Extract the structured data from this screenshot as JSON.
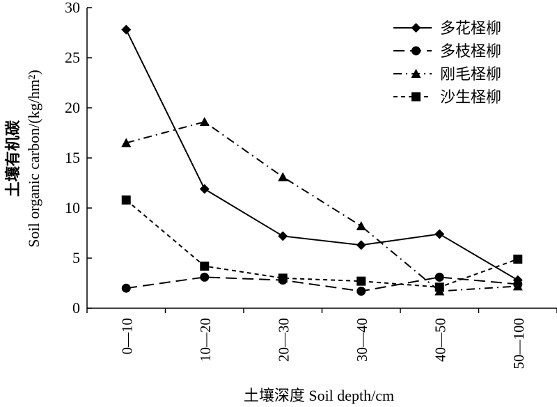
{
  "chart_data": {
    "type": "line",
    "categories": [
      "0—10",
      "10—20",
      "20—30",
      "30—40",
      "40—50",
      "50—100"
    ],
    "xlabel": "土壤深度 Soil depth/cm",
    "ylabel_cn": "土壤有机碳",
    "ylabel_en": "Soil organic carbon/(kg/hm²)",
    "ylim": [
      0,
      30
    ],
    "yticks": [
      0,
      5,
      10,
      15,
      20,
      25,
      30
    ],
    "grid": false,
    "legend_position": "top-right",
    "series": [
      {
        "name": "多花柽柳",
        "marker": "diamond",
        "dash": "solid",
        "values": [
          27.8,
          11.9,
          7.2,
          6.3,
          7.4,
          2.8
        ]
      },
      {
        "name": "多枝柽柳",
        "marker": "circle",
        "dash": "longdash",
        "values": [
          2.0,
          3.1,
          2.8,
          1.7,
          3.1,
          2.4
        ]
      },
      {
        "name": "刚毛柽柳",
        "marker": "triangle",
        "dash": "dashdot",
        "values": [
          16.5,
          18.6,
          13.1,
          8.2,
          1.7,
          2.2
        ]
      },
      {
        "name": "沙生柽柳",
        "marker": "square",
        "dash": "shortdash",
        "values": [
          10.8,
          4.2,
          3.0,
          2.7,
          2.1,
          4.9
        ]
      }
    ]
  }
}
